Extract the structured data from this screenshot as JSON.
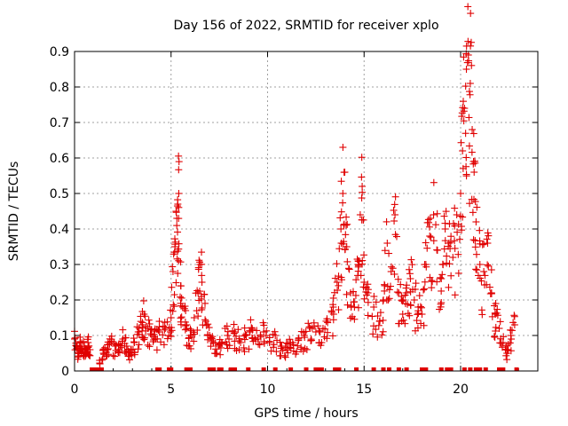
{
  "chart_data": {
    "type": "scatter",
    "title": "Day 156 of 2022, SRMTID for receiver xplo",
    "xlabel": "GPS time / hours",
    "ylabel": "SRMTID / TECUs",
    "xlim": [
      0,
      24
    ],
    "ylim": [
      0,
      0.9
    ],
    "x_ticks": [
      "0",
      "5",
      "10",
      "15",
      "20"
    ],
    "y_ticks": [
      "0",
      "0.1",
      "0.2",
      "0.3",
      "0.4",
      "0.5",
      "0.6",
      "0.7",
      "0.8",
      "0.9"
    ],
    "grid": true,
    "marker": "plus",
    "series": [
      {
        "name": "SRMTID",
        "color": "#e00000",
        "points": [
          [
            0.0,
            0.09
          ],
          [
            0.1,
            0.07
          ],
          [
            0.2,
            0.05
          ],
          [
            0.3,
            0.08
          ],
          [
            0.4,
            0.06
          ],
          [
            0.5,
            0.07
          ],
          [
            0.6,
            0.05
          ],
          [
            0.7,
            0.08
          ],
          [
            0.8,
            0.06
          ],
          [
            1.3,
            0.03
          ],
          [
            1.5,
            0.05
          ],
          [
            1.7,
            0.06
          ],
          [
            1.9,
            0.08
          ],
          [
            2.1,
            0.07
          ],
          [
            2.3,
            0.06
          ],
          [
            2.5,
            0.09
          ],
          [
            2.7,
            0.07
          ],
          [
            2.9,
            0.05
          ],
          [
            3.1,
            0.08
          ],
          [
            3.3,
            0.11
          ],
          [
            3.5,
            0.13
          ],
          [
            3.6,
            0.16
          ],
          [
            3.8,
            0.12
          ],
          [
            4.0,
            0.1
          ],
          [
            4.2,
            0.09
          ],
          [
            4.4,
            0.11
          ],
          [
            4.7,
            0.12
          ],
          [
            5.0,
            0.15
          ],
          [
            5.1,
            0.28
          ],
          [
            5.2,
            0.35
          ],
          [
            5.3,
            0.43
          ],
          [
            5.35,
            0.47
          ],
          [
            5.4,
            0.5
          ],
          [
            5.5,
            0.24
          ],
          [
            5.6,
            0.18
          ],
          [
            5.8,
            0.12
          ],
          [
            6.0,
            0.1
          ],
          [
            6.2,
            0.15
          ],
          [
            6.4,
            0.22
          ],
          [
            6.5,
            0.3
          ],
          [
            6.6,
            0.25
          ],
          [
            6.8,
            0.14
          ],
          [
            7.0,
            0.1
          ],
          [
            7.2,
            0.08
          ],
          [
            7.5,
            0.07
          ],
          [
            7.8,
            0.12
          ],
          [
            8.0,
            0.09
          ],
          [
            8.3,
            0.11
          ],
          [
            8.6,
            0.08
          ],
          [
            8.9,
            0.1
          ],
          [
            9.2,
            0.12
          ],
          [
            9.5,
            0.09
          ],
          [
            9.8,
            0.11
          ],
          [
            10.1,
            0.08
          ],
          [
            10.4,
            0.1
          ],
          [
            10.7,
            0.07
          ],
          [
            11.0,
            0.06
          ],
          [
            11.3,
            0.08
          ],
          [
            11.6,
            0.09
          ],
          [
            11.9,
            0.1
          ],
          [
            12.2,
            0.12
          ],
          [
            12.5,
            0.11
          ],
          [
            12.8,
            0.08
          ],
          [
            13.1,
            0.14
          ],
          [
            13.4,
            0.18
          ],
          [
            13.6,
            0.25
          ],
          [
            13.8,
            0.4
          ],
          [
            13.9,
            0.5
          ],
          [
            14.0,
            0.56
          ],
          [
            14.1,
            0.35
          ],
          [
            14.3,
            0.22
          ],
          [
            14.5,
            0.18
          ],
          [
            14.7,
            0.3
          ],
          [
            14.8,
            0.44
          ],
          [
            14.9,
            0.52
          ],
          [
            15.0,
            0.25
          ],
          [
            15.2,
            0.22
          ],
          [
            15.5,
            0.18
          ],
          [
            15.8,
            0.14
          ],
          [
            16.0,
            0.2
          ],
          [
            16.2,
            0.36
          ],
          [
            16.4,
            0.28
          ],
          [
            16.6,
            0.44
          ],
          [
            16.8,
            0.22
          ],
          [
            17.0,
            0.16
          ],
          [
            17.2,
            0.22
          ],
          [
            17.4,
            0.26
          ],
          [
            17.6,
            0.2
          ],
          [
            17.8,
            0.18
          ],
          [
            18.0,
            0.16
          ],
          [
            18.2,
            0.3
          ],
          [
            18.4,
            0.38
          ],
          [
            18.6,
            0.44
          ],
          [
            18.8,
            0.34
          ],
          [
            19.0,
            0.26
          ],
          [
            19.2,
            0.4
          ],
          [
            19.4,
            0.36
          ],
          [
            19.6,
            0.32
          ],
          [
            19.8,
            0.44
          ],
          [
            20.0,
            0.5
          ],
          [
            20.1,
            0.62
          ],
          [
            20.2,
            0.74
          ],
          [
            20.3,
            0.85
          ],
          [
            20.4,
            0.89
          ],
          [
            20.5,
            0.81
          ],
          [
            20.6,
            0.68
          ],
          [
            20.7,
            0.56
          ],
          [
            20.8,
            0.42
          ],
          [
            21.0,
            0.3
          ],
          [
            21.2,
            0.28
          ],
          [
            21.4,
            0.36
          ],
          [
            21.6,
            0.22
          ],
          [
            21.8,
            0.16
          ],
          [
            22.0,
            0.12
          ],
          [
            22.2,
            0.08
          ],
          [
            22.4,
            0.05
          ],
          [
            22.6,
            0.1
          ],
          [
            22.8,
            0.13
          ]
        ]
      }
    ],
    "zero_markers_x": [
      0.9,
      1.0,
      1.1,
      1.3,
      1.4,
      4.3,
      4.4,
      4.9,
      5.0,
      5.8,
      6.0,
      7.0,
      7.2,
      7.5,
      7.6,
      8.1,
      8.3,
      9.0,
      9.8,
      10.4,
      11.2,
      12.0,
      12.5,
      12.6,
      12.8,
      13.5,
      13.7,
      14.6,
      15.5,
      16.0,
      16.3,
      16.8,
      17.2,
      18.0,
      18.2,
      19.0,
      19.3,
      19.5,
      20.2,
      20.5,
      20.8,
      20.9,
      21.0,
      21.3,
      22.0,
      22.2,
      22.9
    ]
  }
}
